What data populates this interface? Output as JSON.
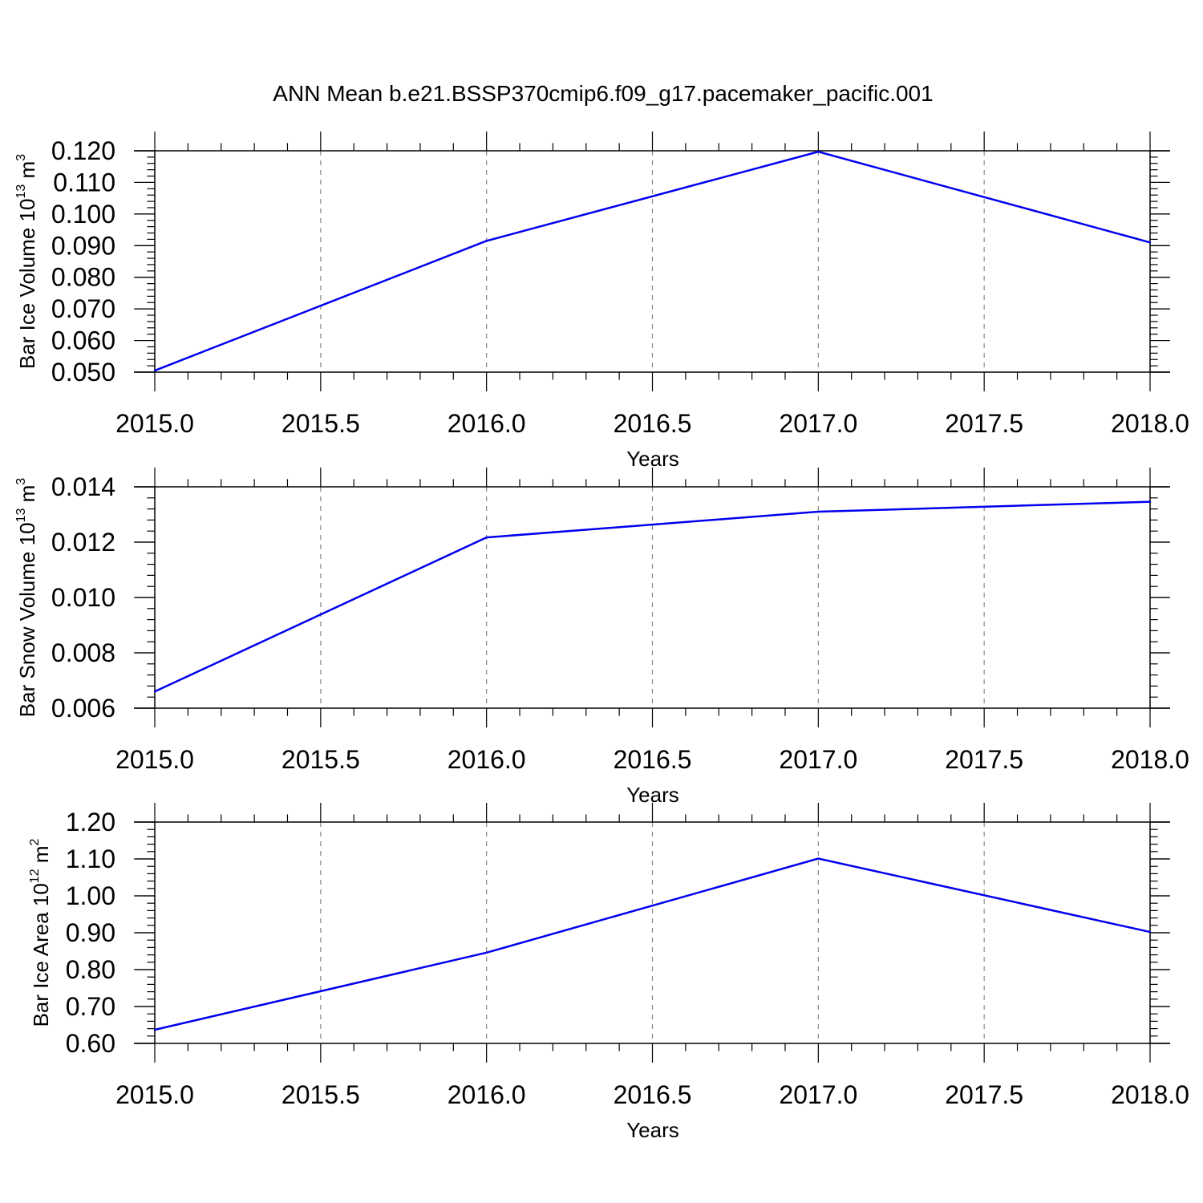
{
  "figure": {
    "title": "ANN Mean b.e21.BSSP370cmip6.f09_g17.pacemaker_pacific.001"
  },
  "chart_data": [
    {
      "type": "line",
      "xlabel": "Years",
      "ylabel": {
        "text": "Bar Ice Volume 10",
        "exponent": "13",
        "unit": " m",
        "unit_exponent": "3"
      },
      "xlim": [
        2015.0,
        2018.0
      ],
      "ylim": [
        0.05,
        0.12
      ],
      "x_ticks": [
        "2015.0",
        "2015.5",
        "2016.0",
        "2016.5",
        "2017.0",
        "2017.5",
        "2018.0"
      ],
      "y_ticks": [
        "0.050",
        "0.060",
        "0.070",
        "0.080",
        "0.090",
        "0.100",
        "0.110",
        "0.120"
      ],
      "grid": "vertical-dashed",
      "series": [
        {
          "x": [
            2015,
            2016,
            2017,
            2018
          ],
          "values": [
            0.0505,
            0.0915,
            0.1197,
            0.091
          ],
          "color": "#0000ee"
        }
      ]
    },
    {
      "type": "line",
      "xlabel": "Years",
      "ylabel": {
        "text": "Bar Snow Volume 10",
        "exponent": "13",
        "unit": " m",
        "unit_exponent": "3"
      },
      "xlim": [
        2015.0,
        2018.0
      ],
      "ylim": [
        0.006,
        0.014
      ],
      "x_ticks": [
        "2015.0",
        "2015.5",
        "2016.0",
        "2016.5",
        "2017.0",
        "2017.5",
        "2018.0"
      ],
      "y_ticks": [
        "0.006",
        "0.008",
        "0.010",
        "0.012",
        "0.014"
      ],
      "grid": "vertical-dashed",
      "series": [
        {
          "x": [
            2015,
            2016,
            2017,
            2018
          ],
          "values": [
            0.0066,
            0.01217,
            0.0131,
            0.01346
          ],
          "color": "#0000ee"
        }
      ]
    },
    {
      "type": "line",
      "xlabel": "Years",
      "ylabel": {
        "text": "Bar Ice Area 10",
        "exponent": "12",
        "unit": " m",
        "unit_exponent": "2"
      },
      "xlim": [
        2015.0,
        2018.0
      ],
      "ylim": [
        0.6,
        1.2
      ],
      "x_ticks": [
        "2015.0",
        "2015.5",
        "2016.0",
        "2016.5",
        "2017.0",
        "2017.5",
        "2018.0"
      ],
      "y_ticks": [
        "0.60",
        "0.70",
        "0.80",
        "0.90",
        "1.00",
        "1.10",
        "1.20"
      ],
      "grid": "vertical-dashed",
      "series": [
        {
          "x": [
            2015,
            2016,
            2017,
            2018
          ],
          "values": [
            0.637,
            0.846,
            1.101,
            0.902
          ],
          "color": "#0000ee"
        }
      ]
    }
  ]
}
